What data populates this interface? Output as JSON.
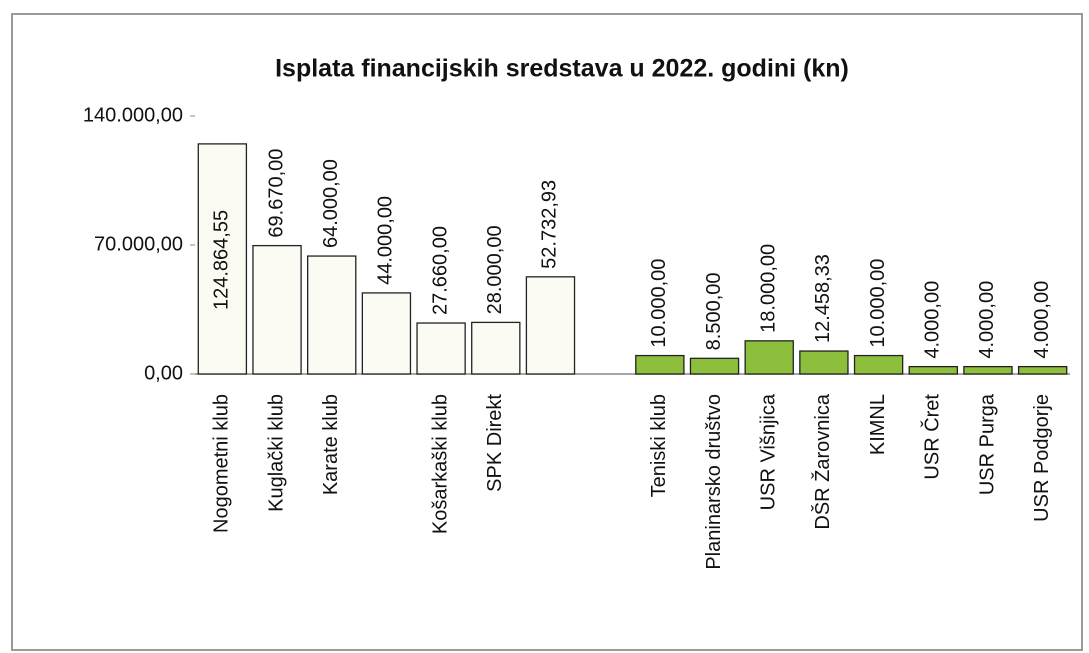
{
  "chart_data": {
    "type": "bar",
    "title": "Isplata financijskih sredstava u 2022. godini (kn)",
    "categories": [
      "Nogometni klub",
      "Kuglački klub",
      "Karate klub",
      null,
      "Košarkaški klub",
      "SPK Direkt",
      null,
      null,
      "Teniski klub",
      "Planinarsko društvo",
      "USR Višnjica",
      "DŠR Žarovnica",
      "KIMNL",
      "USR Čret",
      "USR Purga",
      "USR Podgorje"
    ],
    "values": [
      124864.55,
      69670,
      64000,
      44000,
      27660,
      28000,
      52732.93,
      null,
      10000,
      8500,
      18000,
      12458.33,
      10000,
      4000,
      4000,
      4000
    ],
    "value_labels": [
      "124.864,55",
      "69.670,00",
      "64.000,00",
      "44.000,00",
      "27.660,00",
      "28.000,00",
      "52.732,93",
      null,
      "10.000,00",
      "8.500,00",
      "18.000,00",
      "12.458,33",
      "10.000,00",
      "4.000,00",
      "4.000,00",
      "4.000,00"
    ],
    "colors": [
      "#fbfbf3",
      "#fbfbf3",
      "#fbfbf3",
      "#fbfbf3",
      "#fbfbf3",
      "#fbfbf3",
      "#fbfbf3",
      null,
      "#8dbf3c",
      "#8dbf3c",
      "#8dbf3c",
      "#8dbf3c",
      "#8dbf3c",
      "#8dbf3c",
      "#8dbf3c",
      "#8dbf3c"
    ],
    "ylim": [
      0,
      140000
    ],
    "yticks": [
      {
        "value": 0,
        "label": "0,00"
      },
      {
        "value": 70000,
        "label": "70.000,00"
      },
      {
        "value": 140000,
        "label": "140.000,00"
      }
    ],
    "grid": false
  }
}
